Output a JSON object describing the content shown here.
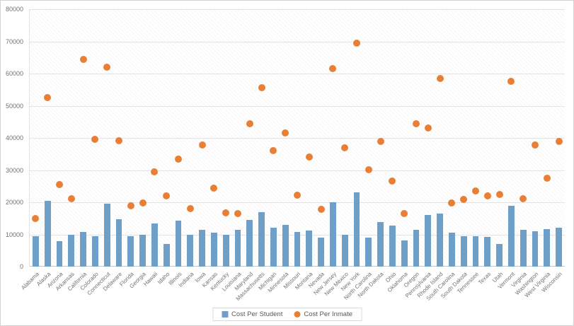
{
  "chart": {
    "background": "#ffffff",
    "border_color": "#d2d2d2",
    "grid_color": "#e3e3e3",
    "tick_label_color": "#737373"
  },
  "chart_data": {
    "type": "bar",
    "title": "",
    "xlabel": "",
    "ylabel": "",
    "ylim": [
      0,
      80000
    ],
    "ytick_step": 10000,
    "ytick_labels": [
      "0",
      "10000",
      "20000",
      "30000",
      "40000",
      "50000",
      "60000",
      "70000",
      "80000"
    ],
    "grid": true,
    "legend_position": "bottom",
    "categories": [
      "Alabama",
      "Alaska",
      "Arizona",
      "Arkansas",
      "California",
      "Colorado",
      "Connecticut",
      "Delaware",
      "Florida",
      "Georgia",
      "Hawaii",
      "Idaho",
      "Illinois",
      "Indiana",
      "Iowa",
      "Kansas",
      "Kentucky",
      "Louisiana",
      "Maryland",
      "Massachusetts",
      "Michigan",
      "Minnesota",
      "Missouri",
      "Montana",
      "Nevada",
      "New Jersey",
      "New Mexico",
      "New York",
      "North Carolina",
      "North Dakota",
      "Ohio",
      "Oklahoma",
      "Oregon",
      "Pennsylvania",
      "Rhode Island",
      "South Carolina",
      "South Dakota",
      "Tennessee",
      "Texas",
      "Utah",
      "Vermont",
      "Virginia",
      "Washington",
      "West Virginia",
      "Wisconsin"
    ],
    "series": [
      {
        "name": "Cost Per Student",
        "type": "bar",
        "color": "#6f9fc8",
        "values": [
          9500,
          20500,
          8000,
          10000,
          10800,
          9500,
          19500,
          14800,
          9500,
          10000,
          13500,
          7000,
          14300,
          10000,
          11500,
          10500,
          10000,
          11500,
          14500,
          17000,
          12000,
          13000,
          10800,
          11300,
          9000,
          20000,
          10000,
          23000,
          9000,
          13800,
          12800,
          8200,
          11500,
          16000,
          16500,
          10500,
          9500,
          9500,
          9300,
          7000,
          19000,
          11500,
          11000,
          11700,
          12000
        ]
      },
      {
        "name": "Cost Per Inmate",
        "type": "scatter",
        "color": "#e97e35",
        "values": [
          15000,
          52500,
          25500,
          21000,
          64500,
          39500,
          62000,
          39200,
          19000,
          19800,
          29500,
          22000,
          33500,
          18000,
          37800,
          24500,
          16800,
          16500,
          44500,
          55500,
          36000,
          41500,
          22200,
          34000,
          17800,
          61500,
          37000,
          69500,
          30200,
          38800,
          26500,
          16500,
          44500,
          43000,
          58500,
          19800,
          20800,
          23500,
          22000,
          22500,
          57500,
          21200,
          37800,
          27500,
          38800
        ]
      }
    ]
  }
}
